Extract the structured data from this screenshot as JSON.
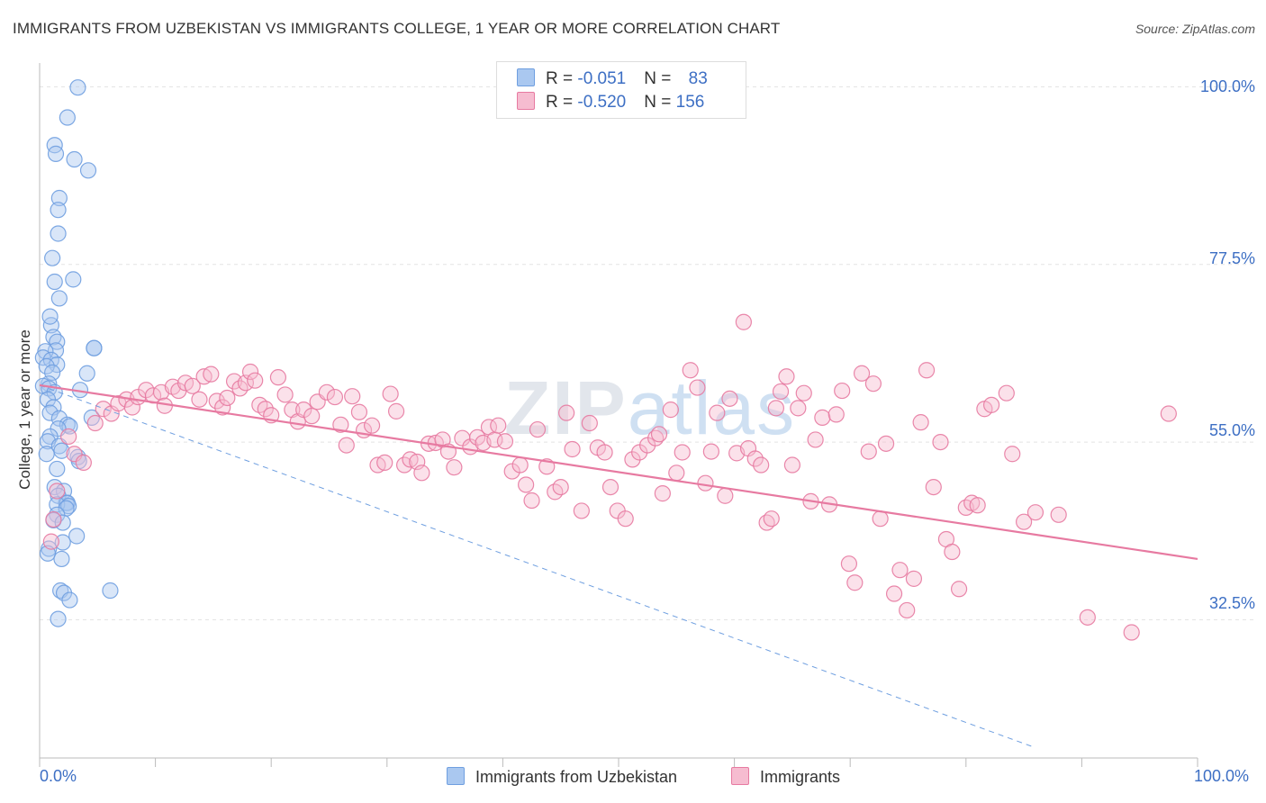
{
  "title": "IMMIGRANTS FROM UZBEKISTAN VS IMMIGRANTS COLLEGE, 1 YEAR OR MORE CORRELATION CHART",
  "source": "Source: ZipAtlas.com",
  "watermark": {
    "zip": "ZIP",
    "atlas": "atlas"
  },
  "legend": {
    "rows": [
      {
        "r_label": "R = ",
        "r_value": "-0.051",
        "n_label": "N = ",
        "n_value": "83"
      },
      {
        "r_label": "R = ",
        "r_value": "-0.520",
        "n_label": "N = ",
        "n_value": "156"
      }
    ]
  },
  "colors": {
    "blue": "#6f9fe0",
    "blue_fill": "#aac8f0",
    "pink": "#e77aa1",
    "pink_fill": "#f6bcd0",
    "grid": "#e3e3e3",
    "tick_label": "#3d6fc4"
  },
  "chart_data": {
    "type": "scatter",
    "title": "IMMIGRANTS FROM UZBEKISTAN VS IMMIGRANTS COLLEGE, 1 YEAR OR MORE CORRELATION CHART",
    "xlabel": "",
    "ylabel": "College, 1 year or more",
    "xlim": [
      0,
      100
    ],
    "ylim": [
      15,
      103
    ],
    "x_tick_labels": [
      "0.0%",
      "100.0%"
    ],
    "y_ticks": [
      32.5,
      55.0,
      77.5,
      100.0
    ],
    "y_tick_labels": [
      "32.5%",
      "55.0%",
      "77.5%",
      "100.0%"
    ],
    "grid": true,
    "legend_position": "top-center",
    "series": [
      {
        "name": "Immigrants from Uzbekistan",
        "color": "blue",
        "trend": {
          "x": [
            0,
            86
          ],
          "y": [
            62.2,
            16.3
          ],
          "style": "dashed"
        },
        "points": [
          [
            3.3,
            99.9
          ],
          [
            2.4,
            96.1
          ],
          [
            1.3,
            92.6
          ],
          [
            1.4,
            91.5
          ],
          [
            3.0,
            90.8
          ],
          [
            4.2,
            89.4
          ],
          [
            1.7,
            85.9
          ],
          [
            1.6,
            84.4
          ],
          [
            1.6,
            81.4
          ],
          [
            1.1,
            78.3
          ],
          [
            1.3,
            75.3
          ],
          [
            2.9,
            75.6
          ],
          [
            1.7,
            73.2
          ],
          [
            1.0,
            69.8
          ],
          [
            1.2,
            68.3
          ],
          [
            0.9,
            70.9
          ],
          [
            1.5,
            67.7
          ],
          [
            1.4,
            66.6
          ],
          [
            0.5,
            66.5
          ],
          [
            0.3,
            65.7
          ],
          [
            1.0,
            65.4
          ],
          [
            1.5,
            64.8
          ],
          [
            0.6,
            64.6
          ],
          [
            1.1,
            63.8
          ],
          [
            4.7,
            66.9
          ],
          [
            4.7,
            66.9
          ],
          [
            4.1,
            63.7
          ],
          [
            0.8,
            62.4
          ],
          [
            0.3,
            62.1
          ],
          [
            0.8,
            61.8
          ],
          [
            1.3,
            61.3
          ],
          [
            3.5,
            61.6
          ],
          [
            0.7,
            60.4
          ],
          [
            1.2,
            59.4
          ],
          [
            0.9,
            58.7
          ],
          [
            1.7,
            58.0
          ],
          [
            4.5,
            58.1
          ],
          [
            2.4,
            57.2
          ],
          [
            2.6,
            57.0
          ],
          [
            1.6,
            56.7
          ],
          [
            0.9,
            55.7
          ],
          [
            0.7,
            55.1
          ],
          [
            1.7,
            54.5
          ],
          [
            0.6,
            53.5
          ],
          [
            1.9,
            53.9
          ],
          [
            3.3,
            53.1
          ],
          [
            3.4,
            52.6
          ],
          [
            1.5,
            51.6
          ],
          [
            1.3,
            49.3
          ],
          [
            2.1,
            48.8
          ],
          [
            1.6,
            48.2
          ],
          [
            2.3,
            47.3
          ],
          [
            2.4,
            47.3
          ],
          [
            1.5,
            47.1
          ],
          [
            2.5,
            46.9
          ],
          [
            2.3,
            46.6
          ],
          [
            1.5,
            45.8
          ],
          [
            1.2,
            45.1
          ],
          [
            2.0,
            44.8
          ],
          [
            3.2,
            43.1
          ],
          [
            2.0,
            42.3
          ],
          [
            0.8,
            41.5
          ],
          [
            0.7,
            40.9
          ],
          [
            1.9,
            40.2
          ],
          [
            1.8,
            36.2
          ],
          [
            2.1,
            35.9
          ],
          [
            6.1,
            36.2
          ],
          [
            2.6,
            35.0
          ],
          [
            1.6,
            32.6
          ]
        ]
      },
      {
        "name": "Immigrants",
        "color": "pink",
        "trend": {
          "x": [
            0,
            100
          ],
          "y": [
            62.2,
            40.2
          ],
          "style": "solid"
        },
        "points": [
          [
            1.2,
            45.2
          ],
          [
            1.5,
            48.8
          ],
          [
            1.0,
            42.4
          ],
          [
            2.5,
            55.7
          ],
          [
            3.0,
            53.5
          ],
          [
            3.8,
            52.4
          ],
          [
            4.8,
            57.4
          ],
          [
            5.5,
            59.2
          ],
          [
            6.2,
            58.6
          ],
          [
            6.8,
            59.9
          ],
          [
            7.5,
            60.4
          ],
          [
            8.0,
            59.4
          ],
          [
            8.5,
            60.7
          ],
          [
            9.2,
            61.6
          ],
          [
            9.8,
            60.9
          ],
          [
            10.5,
            61.3
          ],
          [
            10.8,
            59.6
          ],
          [
            11.5,
            62.0
          ],
          [
            12.0,
            61.5
          ],
          [
            12.6,
            62.5
          ],
          [
            13.2,
            62.1
          ],
          [
            13.8,
            60.4
          ],
          [
            14.2,
            63.3
          ],
          [
            14.8,
            63.6
          ],
          [
            15.3,
            60.2
          ],
          [
            15.8,
            59.4
          ],
          [
            16.2,
            60.6
          ],
          [
            16.8,
            62.7
          ],
          [
            17.3,
            61.8
          ],
          [
            17.8,
            62.5
          ],
          [
            18.2,
            63.9
          ],
          [
            18.6,
            62.8
          ],
          [
            19.0,
            59.7
          ],
          [
            19.5,
            59.2
          ],
          [
            20.0,
            58.4
          ],
          [
            20.6,
            63.2
          ],
          [
            21.2,
            61.0
          ],
          [
            21.8,
            59.1
          ],
          [
            22.3,
            57.6
          ],
          [
            22.8,
            59.1
          ],
          [
            23.5,
            58.3
          ],
          [
            24.0,
            60.1
          ],
          [
            24.8,
            61.3
          ],
          [
            25.5,
            60.7
          ],
          [
            26.0,
            57.2
          ],
          [
            26.5,
            54.6
          ],
          [
            27.0,
            60.8
          ],
          [
            27.6,
            58.8
          ],
          [
            28.0,
            56.5
          ],
          [
            28.7,
            57.1
          ],
          [
            29.2,
            52.1
          ],
          [
            29.8,
            52.4
          ],
          [
            30.3,
            61.1
          ],
          [
            30.8,
            58.9
          ],
          [
            31.5,
            52.1
          ],
          [
            32.0,
            52.8
          ],
          [
            32.6,
            52.5
          ],
          [
            33.0,
            51.1
          ],
          [
            33.6,
            54.8
          ],
          [
            34.2,
            54.9
          ],
          [
            34.8,
            55.3
          ],
          [
            35.3,
            53.8
          ],
          [
            35.8,
            51.8
          ],
          [
            36.5,
            55.5
          ],
          [
            37.2,
            54.4
          ],
          [
            37.8,
            55.6
          ],
          [
            38.3,
            54.9
          ],
          [
            38.8,
            56.9
          ],
          [
            39.3,
            55.3
          ],
          [
            39.6,
            57.1
          ],
          [
            40.2,
            55.1
          ],
          [
            40.8,
            51.3
          ],
          [
            41.5,
            52.1
          ],
          [
            42.0,
            49.6
          ],
          [
            42.5,
            47.6
          ],
          [
            43.0,
            56.6
          ],
          [
            43.8,
            51.9
          ],
          [
            44.5,
            48.7
          ],
          [
            45.0,
            49.3
          ],
          [
            45.5,
            58.7
          ],
          [
            46.0,
            54.1
          ],
          [
            46.8,
            46.3
          ],
          [
            47.5,
            57.4
          ],
          [
            48.2,
            54.3
          ],
          [
            48.8,
            53.7
          ],
          [
            49.3,
            49.3
          ],
          [
            49.9,
            46.3
          ],
          [
            50.6,
            45.3
          ],
          [
            51.2,
            52.8
          ],
          [
            51.8,
            53.7
          ],
          [
            52.5,
            54.6
          ],
          [
            53.2,
            55.5
          ],
          [
            53.5,
            56.0
          ],
          [
            53.8,
            48.5
          ],
          [
            54.5,
            59.1
          ],
          [
            55.0,
            51.1
          ],
          [
            55.5,
            53.7
          ],
          [
            56.2,
            64.1
          ],
          [
            56.8,
            61.9
          ],
          [
            57.5,
            49.8
          ],
          [
            58.0,
            53.8
          ],
          [
            58.5,
            58.7
          ],
          [
            59.2,
            48.2
          ],
          [
            59.6,
            60.5
          ],
          [
            60.2,
            53.6
          ],
          [
            60.8,
            70.2
          ],
          [
            61.2,
            54.2
          ],
          [
            61.8,
            52.9
          ],
          [
            62.3,
            52.1
          ],
          [
            62.8,
            44.8
          ],
          [
            63.2,
            45.3
          ],
          [
            63.6,
            59.3
          ],
          [
            64.0,
            61.4
          ],
          [
            64.5,
            63.3
          ],
          [
            65.0,
            52.1
          ],
          [
            65.5,
            59.3
          ],
          [
            66.0,
            61.2
          ],
          [
            66.6,
            47.5
          ],
          [
            67.0,
            55.3
          ],
          [
            67.6,
            58.1
          ],
          [
            68.2,
            47.1
          ],
          [
            68.8,
            58.5
          ],
          [
            69.3,
            61.5
          ],
          [
            69.9,
            39.6
          ],
          [
            70.4,
            37.2
          ],
          [
            71.0,
            63.7
          ],
          [
            71.6,
            53.8
          ],
          [
            72.0,
            62.4
          ],
          [
            72.6,
            45.3
          ],
          [
            73.1,
            54.8
          ],
          [
            73.8,
            35.8
          ],
          [
            74.3,
            38.8
          ],
          [
            74.9,
            33.7
          ],
          [
            75.5,
            37.7
          ],
          [
            76.1,
            57.5
          ],
          [
            76.6,
            64.1
          ],
          [
            77.2,
            49.3
          ],
          [
            77.8,
            55.0
          ],
          [
            78.3,
            42.7
          ],
          [
            78.8,
            41.1
          ],
          [
            79.4,
            36.4
          ],
          [
            80.0,
            46.7
          ],
          [
            80.5,
            47.3
          ],
          [
            81.0,
            47.0
          ],
          [
            81.6,
            59.2
          ],
          [
            82.2,
            59.7
          ],
          [
            83.5,
            61.2
          ],
          [
            84.0,
            53.5
          ],
          [
            85.0,
            44.9
          ],
          [
            86.0,
            46.1
          ],
          [
            88.0,
            45.8
          ],
          [
            90.5,
            32.8
          ],
          [
            94.3,
            30.9
          ],
          [
            97.5,
            58.6
          ]
        ]
      }
    ]
  },
  "bottom_legend": [
    {
      "label": "Immigrants from Uzbekistan",
      "color": "blue"
    },
    {
      "label": "Immigrants",
      "color": "pink"
    }
  ]
}
